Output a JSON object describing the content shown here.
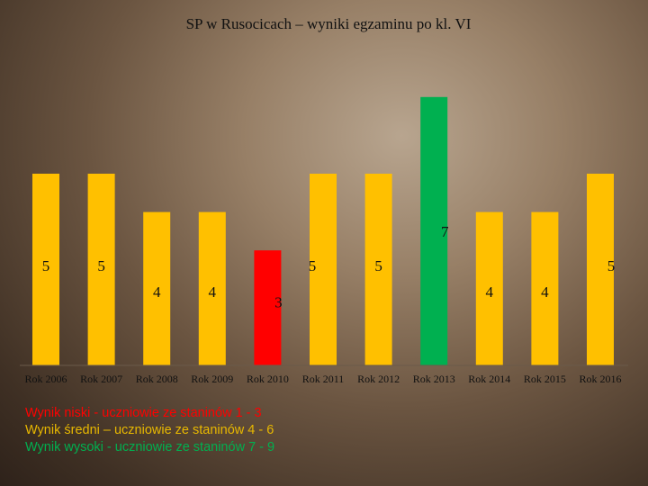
{
  "chart_data": {
    "type": "bar",
    "title": "SP w Rusocicach – wyniki egzaminu po kl. VI",
    "categories": [
      "Rok 2006",
      "Rok 2007",
      "Rok 2008",
      "Rok 2009",
      "Rok 2010",
      "Rok 2011",
      "Rok 2012",
      "Rok 2013",
      "Rok 2014",
      "Rok 2015",
      "Rok 2016"
    ],
    "values": [
      5,
      5,
      4,
      4,
      3,
      5,
      5,
      7,
      4,
      4,
      5
    ],
    "colors": [
      "#ffc000",
      "#ffc000",
      "#ffc000",
      "#ffc000",
      "#ff0000",
      "#ffc000",
      "#ffc000",
      "#00b050",
      "#ffc000",
      "#ffc000",
      "#ffc000"
    ],
    "ylim": [
      0,
      9
    ],
    "grid": false
  },
  "legend": [
    {
      "text": "Wynik niski - uczniowie ze staninów 1 - 3",
      "color": "#ff0000"
    },
    {
      "text": "Wynik średni – uczniowie ze staninów 4 - 6",
      "color": "#e8b800"
    },
    {
      "text": "Wynik wysoki - uczniowie ze staninów 7 - 9",
      "color": "#00b050"
    }
  ]
}
